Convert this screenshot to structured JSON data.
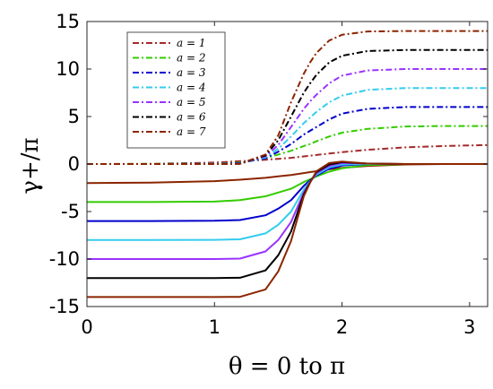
{
  "chart_data": {
    "type": "line",
    "xlabel": "θ = 0 to π",
    "ylabel": "γ+/π",
    "xlim": [
      0,
      3.14159
    ],
    "ylim": [
      -15,
      15
    ],
    "xticks": [
      0,
      1,
      2,
      3
    ],
    "xtick_labels": [
      "0",
      "1",
      "2",
      "3"
    ],
    "yticks": [
      -15,
      -10,
      -5,
      0,
      5,
      10,
      15
    ],
    "ytick_labels": [
      "-15",
      "-10",
      "-5",
      "0",
      "5",
      "10",
      "15"
    ],
    "grid": false,
    "legend_position": "top-left",
    "legend": [
      {
        "label": "a = 1",
        "color": "#A52A2A"
      },
      {
        "label": "a = 2",
        "color": "#33CC00"
      },
      {
        "label": "a = 3",
        "color": "#0000CC"
      },
      {
        "label": "a = 4",
        "color": "#33CCEE"
      },
      {
        "label": "a = 5",
        "color": "#9933FF"
      },
      {
        "label": "a = 6",
        "color": "#000000"
      },
      {
        "label": "a = 7",
        "color": "#8B2500"
      }
    ],
    "x": [
      0,
      0.5,
      1.0,
      1.2,
      1.4,
      1.5,
      1.6,
      1.7,
      1.75,
      1.8,
      1.9,
      2.0,
      2.2,
      2.5,
      2.8,
      3.14159
    ],
    "series": [
      {
        "name": "a = 1",
        "color": "#A52A2A",
        "dash": true,
        "values": [
          0,
          0.02,
          0.15,
          0.3,
          0.45,
          0.55,
          0.65,
          0.8,
          0.88,
          0.95,
          1.1,
          1.25,
          1.5,
          1.75,
          1.9,
          2.0
        ]
      },
      {
        "name": "a = 2",
        "color": "#33CC00",
        "dash": true,
        "values": [
          0,
          0.01,
          0.05,
          0.15,
          0.6,
          1.0,
          1.4,
          1.9,
          2.1,
          2.4,
          2.9,
          3.3,
          3.7,
          3.95,
          4.0,
          4.0
        ]
      },
      {
        "name": "a = 3",
        "color": "#0000CC",
        "dash": true,
        "values": [
          0,
          0,
          0.03,
          0.1,
          0.6,
          1.3,
          2.1,
          3.1,
          3.5,
          3.9,
          4.7,
          5.3,
          5.8,
          6.0,
          6.0,
          6.0
        ]
      },
      {
        "name": "a = 4",
        "color": "#33CCEE",
        "dash": true,
        "values": [
          0,
          0,
          0.02,
          0.08,
          0.7,
          1.6,
          2.9,
          4.3,
          4.9,
          5.5,
          6.5,
          7.2,
          7.8,
          8.0,
          8.0,
          8.0
        ]
      },
      {
        "name": "a = 5",
        "color": "#9933FF",
        "dash": true,
        "values": [
          0,
          0,
          0.01,
          0.05,
          0.8,
          2.0,
          3.9,
          5.8,
          6.6,
          7.3,
          8.5,
          9.3,
          9.85,
          10.0,
          10.0,
          10.0
        ]
      },
      {
        "name": "a = 6",
        "color": "#000000",
        "dash": true,
        "values": [
          0,
          0,
          0,
          0.03,
          0.9,
          2.5,
          5.0,
          7.5,
          8.5,
          9.4,
          10.7,
          11.4,
          11.9,
          12.0,
          12.0,
          12.0
        ]
      },
      {
        "name": "a = 7",
        "color": "#8B2500",
        "dash": true,
        "values": [
          0,
          0,
          0,
          0.02,
          1.0,
          3.0,
          6.5,
          9.5,
          10.7,
          11.7,
          13.0,
          13.6,
          13.95,
          14.0,
          14.0,
          14.0
        ]
      },
      {
        "name": "",
        "color": "#8B2500",
        "dash": false,
        "values": [
          -2.0,
          -1.95,
          -1.8,
          -1.65,
          -1.45,
          -1.3,
          -1.15,
          -0.95,
          -0.85,
          -0.75,
          -0.55,
          -0.4,
          -0.2,
          -0.05,
          0,
          0
        ]
      },
      {
        "name": "",
        "color": "#33CC00",
        "dash": false,
        "values": [
          -4.0,
          -4.0,
          -3.95,
          -3.8,
          -3.4,
          -3.0,
          -2.6,
          -1.9,
          -1.6,
          -1.3,
          -0.8,
          -0.45,
          -0.1,
          0,
          0,
          0
        ]
      },
      {
        "name": "",
        "color": "#0000CC",
        "dash": false,
        "values": [
          -6.0,
          -6.0,
          -5.97,
          -5.9,
          -5.4,
          -4.7,
          -3.8,
          -2.3,
          -1.7,
          -1.2,
          -0.5,
          -0.15,
          0,
          0,
          0,
          0
        ]
      },
      {
        "name": "",
        "color": "#33CCEE",
        "dash": false,
        "values": [
          -8.0,
          -8.0,
          -7.98,
          -7.92,
          -7.3,
          -6.4,
          -5.0,
          -2.7,
          -1.8,
          -1.1,
          -0.35,
          -0.05,
          0,
          0,
          0,
          0
        ]
      },
      {
        "name": "",
        "color": "#9933FF",
        "dash": false,
        "values": [
          -10.0,
          -10.0,
          -10.0,
          -9.95,
          -9.2,
          -8.0,
          -6.1,
          -3.0,
          -1.9,
          -0.95,
          -0.2,
          0.1,
          0.05,
          0,
          0,
          0
        ]
      },
      {
        "name": "",
        "color": "#000000",
        "dash": false,
        "values": [
          -12.0,
          -12.0,
          -12.0,
          -11.97,
          -11.2,
          -9.6,
          -7.1,
          -3.2,
          -1.9,
          -0.85,
          -0.05,
          0.2,
          0.05,
          0,
          0,
          0
        ]
      },
      {
        "name": "",
        "color": "#8B2500",
        "dash": false,
        "values": [
          -14.0,
          -14.0,
          -14.0,
          -13.98,
          -13.2,
          -11.3,
          -8.1,
          -3.4,
          -1.95,
          -0.75,
          0.1,
          0.25,
          0.05,
          0,
          0,
          0
        ]
      }
    ]
  }
}
